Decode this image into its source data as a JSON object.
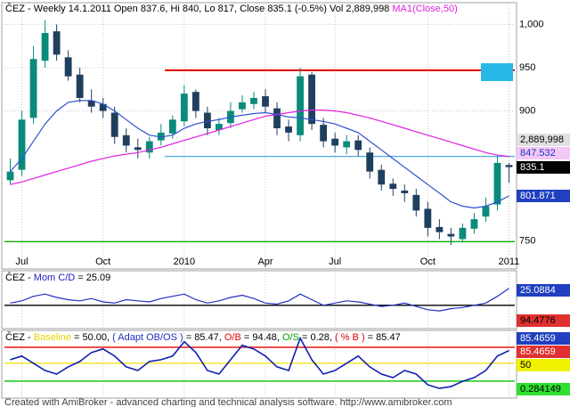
{
  "chart_data": [
    {
      "type": "candlestick",
      "title_segments": [
        {
          "text": "ČEZ - Weekly 14.1.2011 Open 837.6, Hi 840, Lo 817, Close 835.1 (-0.5%) Vol 2,889,998 ",
          "color": "#000000"
        },
        {
          "text": "MA1(Close,50)",
          "color": "#e020e0"
        }
      ],
      "categories": [
        null,
        "Jul",
        null,
        null,
        null,
        null,
        null,
        null,
        "Oct",
        null,
        null,
        null,
        null,
        null,
        null,
        "2010",
        null,
        null,
        null,
        null,
        null,
        null,
        "Apr",
        null,
        null,
        null,
        null,
        null,
        "Jul",
        null,
        null,
        null,
        null,
        null,
        null,
        null,
        "Oct",
        null,
        null,
        null,
        null,
        null,
        null,
        "2011"
      ],
      "open": [
        820,
        832,
        892,
        958,
        992,
        962,
        942,
        912,
        908,
        898,
        872,
        858,
        852,
        866,
        874,
        888,
        922,
        898,
        878,
        886,
        902,
        908,
        917,
        903,
        882,
        872,
        942,
        884,
        868,
        858,
        866,
        852,
        832,
        816,
        808,
        803,
        787,
        766,
        758,
        752,
        764,
        778,
        792,
        837.6
      ],
      "high": [
        845,
        900,
        975,
        1005,
        1000,
        970,
        950,
        925,
        915,
        905,
        880,
        868,
        870,
        885,
        895,
        930,
        925,
        905,
        892,
        910,
        918,
        922,
        925,
        910,
        890,
        950,
        945,
        892,
        875,
        872,
        872,
        858,
        838,
        822,
        815,
        810,
        795,
        775,
        765,
        770,
        782,
        800,
        848,
        840
      ],
      "low": [
        815,
        825,
        885,
        950,
        958,
        935,
        910,
        898,
        892,
        862,
        852,
        845,
        845,
        860,
        868,
        882,
        892,
        872,
        872,
        880,
        898,
        902,
        898,
        872,
        865,
        865,
        878,
        858,
        852,
        850,
        848,
        822,
        808,
        802,
        795,
        778,
        755,
        752,
        745,
        748,
        758,
        772,
        785,
        817
      ],
      "close": [
        830,
        890,
        960,
        990,
        965,
        940,
        915,
        905,
        900,
        870,
        860,
        855,
        865,
        875,
        890,
        920,
        900,
        880,
        885,
        900,
        910,
        915,
        905,
        880,
        875,
        940,
        885,
        865,
        860,
        865,
        855,
        830,
        815,
        810,
        805,
        785,
        765,
        760,
        755,
        765,
        775,
        790,
        840,
        835.1
      ],
      "up_color": "#0a8a7a",
      "down_color": "#1f3f5f",
      "series": [
        {
          "color": "#e020e0",
          "values": [
            815,
            818,
            822,
            826,
            830,
            834,
            838,
            842,
            845,
            848,
            850,
            852,
            855,
            858,
            862,
            866,
            870,
            874,
            878,
            882,
            886,
            890,
            894,
            896,
            898,
            900,
            901,
            901,
            900,
            898,
            895,
            892,
            888,
            884,
            880,
            876,
            872,
            868,
            864,
            860,
            856,
            852,
            849,
            847.532
          ]
        },
        {
          "color": "#3050d0",
          "values": [
            830,
            845,
            865,
            885,
            900,
            910,
            912,
            912,
            908,
            900,
            890,
            880,
            872,
            870,
            872,
            880,
            885,
            888,
            890,
            893,
            895,
            897,
            898,
            896,
            893,
            892,
            890,
            888,
            885,
            880,
            875,
            865,
            855,
            845,
            835,
            825,
            815,
            805,
            795,
            790,
            788,
            790,
            795,
            801.871
          ]
        }
      ],
      "ylim": [
        735,
        1023
      ],
      "yticks": [
        750,
        900,
        950,
        {
          "value": 1000,
          "label": "1,000"
        }
      ],
      "hlines": [
        {
          "value": 947,
          "color": "#e00000"
        },
        {
          "value": 847.5,
          "color": "#50a8e0"
        },
        {
          "value": 749,
          "color": "#00b000"
        }
      ],
      "tags": [
        {
          "label": "2,889,998",
          "bg": "#e0e0e0",
          "fg": "#000000"
        },
        {
          "label": "847.532",
          "bg": "#f4c8f4",
          "fg": "#2030c0"
        },
        {
          "label": "835.1",
          "bg": "#000000",
          "fg": "#ffffff"
        },
        {
          "label": "801.871",
          "bg": "#2040c0",
          "fg": "#ffffff"
        }
      ]
    },
    {
      "type": "line",
      "title_segments": [
        {
          "text": "ČEZ - ",
          "color": "#000000"
        },
        {
          "text": "Mom C/D",
          "color": "#2020c0"
        },
        {
          "text": " = 25.09",
          "color": "#000000"
        }
      ],
      "series": [
        {
          "color": "#2030c0",
          "values": [
            12,
            14,
            18,
            20,
            17,
            15,
            14,
            16,
            13,
            12,
            15,
            14,
            13,
            16,
            18,
            20,
            15,
            12,
            14,
            17,
            19,
            16,
            12,
            11,
            14,
            20,
            15,
            10,
            12,
            14,
            13,
            11,
            9,
            10,
            12,
            9,
            6,
            5,
            7,
            8,
            10,
            12,
            18,
            25.0884
          ]
        }
      ],
      "ylim": [
        -10,
        40
      ],
      "hlines": [
        {
          "value": 10,
          "color": "#000000"
        }
      ],
      "tags": [
        {
          "label": "25.0884",
          "bg": "#2040c0",
          "fg": "#ffffff"
        },
        {
          "label": "94.4776",
          "bg": "#e03030",
          "fg": "#000000"
        }
      ]
    },
    {
      "type": "line",
      "title_segments": [
        {
          "text": "ČEZ - ",
          "color": "#000000"
        },
        {
          "text": "Baseline",
          "color": "#e8d000"
        },
        {
          "text": " = 50.00, ",
          "color": "#000000"
        },
        {
          "text": "( Adapt OB/OS )",
          "color": "#2030c0"
        },
        {
          "text": " = 85.47, ",
          "color": "#000000"
        },
        {
          "text": "O/B",
          "color": "#e00000"
        },
        {
          "text": " = 94.48, ",
          "color": "#000000"
        },
        {
          "text": "O/S",
          "color": "#00a000"
        },
        {
          "text": " = 0.28, ",
          "color": "#000000"
        },
        {
          "text": "( % B )",
          "color": "#e00000"
        },
        {
          "text": " = 85.47",
          "color": "#000000"
        }
      ],
      "series": [
        {
          "color": "#1020b0",
          "values": [
            60,
            70,
            50,
            30,
            20,
            40,
            55,
            80,
            90,
            70,
            40,
            30,
            55,
            60,
            70,
            110,
            80,
            30,
            20,
            60,
            100,
            90,
            70,
            40,
            30,
            120,
            60,
            20,
            30,
            50,
            70,
            40,
            20,
            10,
            30,
            20,
            -10,
            -20,
            -15,
            0,
            10,
            30,
            70,
            85.4659
          ]
        }
      ],
      "ylim": [
        -42,
        139
      ],
      "hlines": [
        {
          "value": 94.48,
          "color": "#e00000"
        },
        {
          "value": 50,
          "color": "#f0e000"
        },
        {
          "value": 0.28,
          "color": "#00c000"
        }
      ],
      "tags": [
        {
          "label": "85.4659",
          "bg": "#2040c0",
          "fg": "#ffffff"
        },
        {
          "label": "85.4659",
          "bg": "#e03030",
          "fg": "#ffffff"
        },
        {
          "label": "50",
          "bg": "#f0f000",
          "fg": "#000000"
        },
        {
          "label": "0.284149",
          "bg": "#30e030",
          "fg": "#000000"
        }
      ]
    }
  ],
  "footer": "Created with AmiBroker - advanced charting and technical analysis software. http://www.amibroker.com"
}
